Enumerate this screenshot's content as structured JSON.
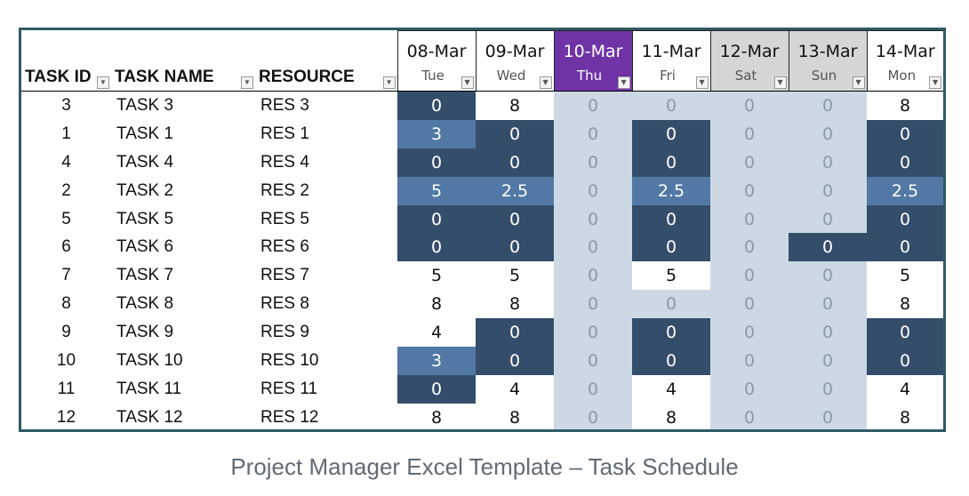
{
  "columns": {
    "task_id": "TASK ID",
    "task_name": "TASK NAME",
    "resource": "RESOURCE"
  },
  "dates": [
    {
      "date": "08-Mar",
      "day": "Tue",
      "kind": "normal"
    },
    {
      "date": "09-Mar",
      "day": "Wed",
      "kind": "normal"
    },
    {
      "date": "10-Mar",
      "day": "Thu",
      "kind": "today"
    },
    {
      "date": "11-Mar",
      "day": "Fri",
      "kind": "normal"
    },
    {
      "date": "12-Mar",
      "day": "Sat",
      "kind": "weekend"
    },
    {
      "date": "13-Mar",
      "day": "Sun",
      "kind": "weekend"
    },
    {
      "date": "14-Mar",
      "day": "Mon",
      "kind": "normal"
    }
  ],
  "rows": [
    {
      "id": "3",
      "name": "TASK 3",
      "res": "RES 3",
      "values": [
        "0",
        "8",
        "0",
        "0",
        "0",
        "0",
        "8"
      ],
      "fills": [
        "dark",
        "white",
        "light",
        "light",
        "light",
        "light",
        "white"
      ]
    },
    {
      "id": "1",
      "name": "TASK 1",
      "res": "RES 1",
      "values": [
        "3",
        "0",
        "0",
        "0",
        "0",
        "0",
        "0"
      ],
      "fills": [
        "mid",
        "dark",
        "light",
        "dark",
        "light",
        "light",
        "dark"
      ]
    },
    {
      "id": "4",
      "name": "TASK 4",
      "res": "RES 4",
      "values": [
        "0",
        "0",
        "0",
        "0",
        "0",
        "0",
        "0"
      ],
      "fills": [
        "dark",
        "dark",
        "light",
        "dark",
        "light",
        "light",
        "dark"
      ]
    },
    {
      "id": "2",
      "name": "TASK 2",
      "res": "RES 2",
      "values": [
        "5",
        "2.5",
        "0",
        "2.5",
        "0",
        "0",
        "2.5"
      ],
      "fills": [
        "mid",
        "mid",
        "light",
        "mid",
        "light",
        "light",
        "mid"
      ]
    },
    {
      "id": "5",
      "name": "TASK 5",
      "res": "RES 5",
      "values": [
        "0",
        "0",
        "0",
        "0",
        "0",
        "0",
        "0"
      ],
      "fills": [
        "dark",
        "dark",
        "light",
        "dark",
        "light",
        "light",
        "dark"
      ]
    },
    {
      "id": "6",
      "name": "TASK 6",
      "res": "RES 6",
      "values": [
        "0",
        "0",
        "0",
        "0",
        "0",
        "0",
        "0"
      ],
      "fills": [
        "dark",
        "dark",
        "light",
        "dark",
        "light",
        "dark",
        "dark"
      ]
    },
    {
      "id": "7",
      "name": "TASK 7",
      "res": "RES 7",
      "values": [
        "5",
        "5",
        "0",
        "5",
        "0",
        "0",
        "5"
      ],
      "fills": [
        "white",
        "white",
        "light",
        "white",
        "light",
        "light",
        "white"
      ]
    },
    {
      "id": "8",
      "name": "TASK 8",
      "res": "RES 8",
      "values": [
        "8",
        "8",
        "0",
        "0",
        "0",
        "0",
        "8"
      ],
      "fills": [
        "white",
        "white",
        "light",
        "light",
        "light",
        "light",
        "white"
      ]
    },
    {
      "id": "9",
      "name": "TASK 9",
      "res": "RES 9",
      "values": [
        "4",
        "0",
        "0",
        "0",
        "0",
        "0",
        "0"
      ],
      "fills": [
        "white",
        "dark",
        "light",
        "dark",
        "light",
        "light",
        "dark"
      ]
    },
    {
      "id": "10",
      "name": "TASK 10",
      "res": "RES 10",
      "values": [
        "3",
        "0",
        "0",
        "0",
        "0",
        "0",
        "0"
      ],
      "fills": [
        "mid",
        "dark",
        "light",
        "dark",
        "light",
        "light",
        "dark"
      ]
    },
    {
      "id": "11",
      "name": "TASK 11",
      "res": "RES 11",
      "values": [
        "0",
        "4",
        "0",
        "4",
        "0",
        "0",
        "4"
      ],
      "fills": [
        "dark",
        "white",
        "light",
        "white",
        "light",
        "light",
        "white"
      ]
    },
    {
      "id": "12",
      "name": "TASK 12",
      "res": "RES 12",
      "values": [
        "8",
        "8",
        "0",
        "8",
        "0",
        "0",
        "8"
      ],
      "fills": [
        "white",
        "white",
        "light",
        "white",
        "light",
        "light",
        "white"
      ]
    }
  ],
  "colors": {
    "frame": "#2f5a64",
    "dark": "#344d6b",
    "mid": "#5279a5",
    "light": "#ccd9e5",
    "today": "#6f33a6",
    "weekend": "#d6d6d6"
  },
  "caption": "Project Manager Excel Template – Task Schedule"
}
